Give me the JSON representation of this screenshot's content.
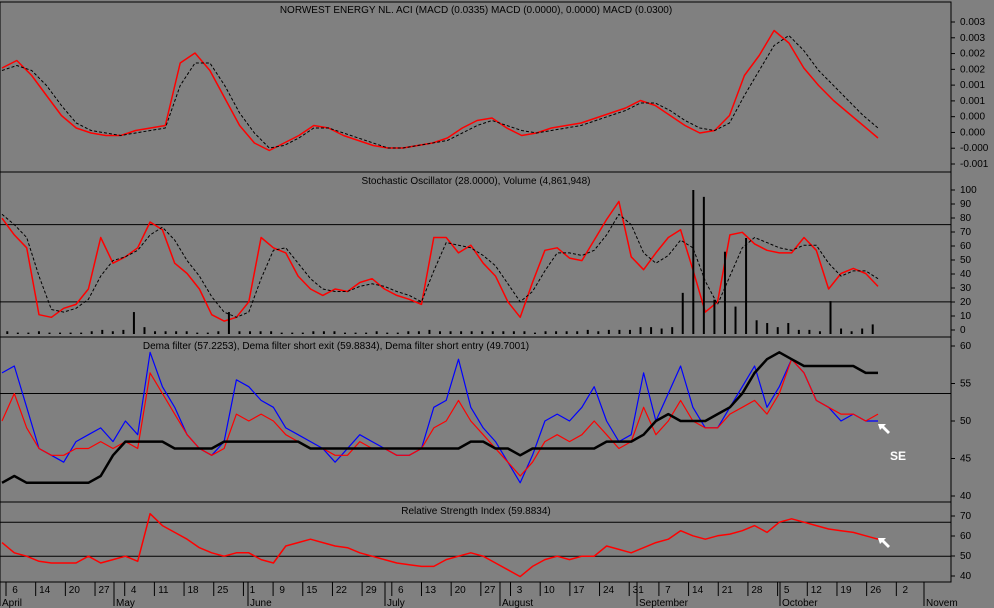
{
  "colors": {
    "background": "#808080",
    "price_red": "#ff0000",
    "signal_black": "#000000",
    "dema_blue": "#0000ff",
    "arrow_white": "#ffffff"
  },
  "x_axis": {
    "day_ticks": [
      "6",
      "14",
      "20",
      "27",
      "4",
      "11",
      "18",
      "25",
      "1",
      "9",
      "15",
      "22",
      "29",
      "6",
      "13",
      "20",
      "27",
      "3",
      "10",
      "17",
      "24",
      "31",
      "7",
      "14",
      "21",
      "28",
      "5",
      "12",
      "19",
      "26",
      "2"
    ],
    "month_labels": [
      "April",
      "May",
      "June",
      "July",
      "August",
      "September",
      "October",
      "Novem"
    ]
  },
  "chart_data": [
    {
      "type": "line",
      "panel": "oscillator",
      "title": "NORWEST ENERGY NL. ACI (MACD (0.0335) MACD (0.0000), 0.0000) MACD (0.0300)",
      "ylim": [
        -0.0015,
        0.0045
      ],
      "yticks": [
        "0.003",
        "0.003",
        "0.002",
        "0.002",
        "0.001",
        "0.001",
        "0.000",
        "0.000",
        "-0.000",
        "-0.001"
      ],
      "series": [
        {
          "style": "red-solid",
          "values": [
            0.0025,
            0.0028,
            0.0022,
            0.0014,
            0.0006,
            0.0001,
            -0.0001,
            -0.0002,
            -0.0002,
            0.0,
            0.0001,
            0.0002,
            0.0027,
            0.0031,
            0.0024,
            0.0013,
            0.0002,
            -0.0005,
            -0.0008,
            -0.0005,
            -0.0002,
            0.0002,
            0.0001,
            -0.0002,
            -0.0004,
            -0.0006,
            -0.0007,
            -0.0007,
            -0.0006,
            -0.0005,
            -0.0003,
            0.0001,
            0.0004,
            0.0005,
            0.0001,
            -0.0002,
            -0.0001,
            0.0001,
            0.0002,
            0.0003,
            0.0005,
            0.0007,
            0.0009,
            0.0012,
            0.001,
            0.0006,
            0.0002,
            -0.0001,
            0.0,
            0.0006,
            0.0022,
            0.003,
            0.004,
            0.0035,
            0.0025,
            0.0018,
            0.0012,
            0.0007,
            0.0002,
            -0.0003
          ]
        },
        {
          "style": "black-dashed",
          "values": [
            0.0024,
            0.0026,
            0.0024,
            0.0018,
            0.001,
            0.0003,
            0.0,
            -0.0001,
            -0.0002,
            -0.0001,
            0.0,
            0.0001,
            0.0018,
            0.0027,
            0.0027,
            0.0018,
            0.0007,
            -0.0001,
            -0.0007,
            -0.0006,
            -0.0003,
            0.0001,
            0.0001,
            -0.0001,
            -0.0003,
            -0.0005,
            -0.0007,
            -0.0007,
            -0.0006,
            -0.0005,
            -0.0004,
            -0.0001,
            0.0002,
            0.0004,
            0.0002,
            0.0,
            -0.0001,
            0.0,
            0.0001,
            0.0002,
            0.0004,
            0.0006,
            0.0008,
            0.0011,
            0.0011,
            0.0008,
            0.0004,
            0.0001,
            0.0,
            0.0003,
            0.0014,
            0.0024,
            0.0034,
            0.0038,
            0.0032,
            0.0024,
            0.0018,
            0.0012,
            0.0006,
            0.0001
          ]
        }
      ]
    },
    {
      "type": "line",
      "panel": "stochastic",
      "title": "Stochastic Oscillator (28.0000), Volume (4,861,948)",
      "ylim": [
        -5,
        110
      ],
      "yticks": [
        "100",
        "90",
        "80",
        "70",
        "60",
        "50",
        "40",
        "30",
        "20",
        "10",
        "0"
      ],
      "reference_lines": [
        80,
        20
      ],
      "series": [
        {
          "style": "red-solid",
          "values": [
            85,
            72,
            62,
            10,
            8,
            15,
            18,
            30,
            70,
            50,
            55,
            62,
            82,
            76,
            50,
            42,
            30,
            10,
            5,
            8,
            20,
            70,
            62,
            58,
            40,
            30,
            25,
            30,
            28,
            35,
            38,
            30,
            25,
            22,
            18,
            70,
            70,
            58,
            64,
            50,
            40,
            20,
            8,
            35,
            60,
            62,
            54,
            52,
            68,
            84,
            98,
            55,
            45,
            58,
            70,
            76,
            45,
            12,
            20,
            72,
            74,
            65,
            60,
            58,
            58,
            70,
            60,
            30,
            42,
            46,
            42,
            32
          ]
        },
        {
          "style": "black-dashed",
          "values": [
            88,
            80,
            70,
            40,
            14,
            12,
            15,
            22,
            40,
            52,
            55,
            60,
            72,
            78,
            68,
            52,
            40,
            24,
            12,
            8,
            12,
            38,
            60,
            62,
            50,
            38,
            30,
            28,
            28,
            32,
            34,
            32,
            28,
            25,
            20,
            44,
            66,
            64,
            62,
            56,
            48,
            34,
            20,
            28,
            44,
            58,
            58,
            56,
            60,
            72,
            88,
            80,
            58,
            50,
            56,
            68,
            62,
            36,
            18,
            40,
            62,
            70,
            66,
            62,
            60,
            64,
            64,
            50,
            40,
            44,
            44,
            38
          ]
        },
        {
          "style": "volume-bars",
          "values": [
            2,
            1,
            1,
            2,
            1,
            1,
            1,
            1,
            2,
            3,
            2,
            3,
            16,
            5,
            2,
            2,
            2,
            2,
            1,
            1,
            2,
            16,
            2,
            2,
            2,
            2,
            1,
            1,
            1,
            2,
            2,
            2,
            1,
            1,
            1,
            2,
            1,
            1,
            2,
            2,
            3,
            2,
            2,
            2,
            2,
            2,
            2,
            2,
            2,
            2,
            1,
            2,
            2,
            2,
            2,
            3,
            2,
            3,
            3,
            3,
            5,
            5,
            4,
            5,
            30,
            105,
            100,
            25,
            60,
            20,
            70,
            10,
            8,
            5,
            8,
            3,
            3,
            2,
            24,
            4,
            2,
            4,
            7
          ]
        }
      ]
    },
    {
      "type": "line",
      "panel": "dema",
      "title": "Dema filter (57.2253), Dema filter short exit (59.8834), Dema filter short entry (49.7001)",
      "ylim": [
        38.5,
        61.5
      ],
      "yticks": [
        "60",
        "55",
        "50",
        "45",
        "40"
      ],
      "reference_lines": [
        54
      ],
      "annotations": [
        "SE"
      ],
      "series": [
        {
          "style": "blue",
          "values": [
            57,
            58,
            52,
            46,
            45,
            44,
            47,
            48,
            49,
            47,
            50,
            48,
            60,
            55,
            52,
            48,
            46,
            45,
            47,
            56,
            55,
            53,
            52,
            49,
            48,
            47,
            46,
            44,
            46,
            48,
            47,
            46,
            45,
            45,
            46,
            52,
            53,
            59,
            52,
            49,
            47,
            44,
            41,
            45,
            50,
            51,
            50,
            52,
            55,
            50,
            47,
            48,
            57,
            50,
            54,
            58,
            52,
            49,
            49,
            52,
            55,
            58,
            52,
            55,
            59,
            57,
            53,
            52,
            50,
            51,
            50,
            50
          ]
        },
        {
          "style": "red",
          "values": [
            50,
            54,
            49,
            46,
            45,
            45,
            46,
            46,
            47,
            46,
            47,
            46,
            57,
            54,
            51,
            48,
            46,
            45,
            46,
            51,
            50,
            51,
            50,
            48,
            47,
            46,
            46,
            45,
            45,
            47,
            46,
            46,
            45,
            45,
            46,
            49,
            50,
            53,
            50,
            48,
            46,
            44,
            42,
            44,
            47,
            48,
            47,
            48,
            50,
            48,
            46,
            47,
            52,
            48,
            50,
            53,
            50,
            49,
            49,
            51,
            52,
            53,
            51,
            54,
            59,
            57,
            53,
            52,
            51,
            51,
            50,
            51
          ]
        },
        {
          "style": "black-thick",
          "values": [
            41,
            42,
            41,
            41,
            41,
            41,
            41,
            41,
            42,
            45,
            47,
            47,
            47,
            47,
            46,
            46,
            46,
            46,
            47,
            47,
            47,
            47,
            47,
            47,
            47,
            46,
            46,
            46,
            46,
            46,
            46,
            46,
            46,
            46,
            46,
            46,
            46,
            46,
            47,
            47,
            46,
            46,
            45,
            46,
            46,
            46,
            46,
            46,
            46,
            47,
            47,
            47,
            48,
            50,
            51,
            50,
            50,
            50,
            51,
            52,
            54,
            57,
            59,
            60,
            59,
            58,
            58,
            58,
            58,
            58,
            57,
            57
          ]
        }
      ]
    },
    {
      "type": "line",
      "panel": "rsi",
      "title": "Relative Strength Index (59.8834)",
      "ylim": [
        36,
        76
      ],
      "yticks": [
        "70",
        "60",
        "50",
        "40"
      ],
      "reference_lines": [
        70,
        50
      ],
      "series": [
        {
          "style": "red-solid",
          "values": [
            58,
            52,
            50,
            47,
            46,
            46,
            46,
            50,
            46,
            48,
            50,
            47,
            75,
            68,
            64,
            60,
            55,
            52,
            50,
            52,
            52,
            48,
            46,
            56,
            58,
            60,
            58,
            56,
            55,
            52,
            50,
            48,
            46,
            45,
            44,
            44,
            48,
            50,
            52,
            50,
            46,
            42,
            38,
            44,
            48,
            50,
            48,
            50,
            50,
            56,
            54,
            52,
            55,
            58,
            60,
            65,
            62,
            60,
            62,
            63,
            65,
            68,
            64,
            70,
            72,
            70,
            68,
            66,
            65,
            64,
            62,
            60
          ]
        }
      ]
    }
  ]
}
